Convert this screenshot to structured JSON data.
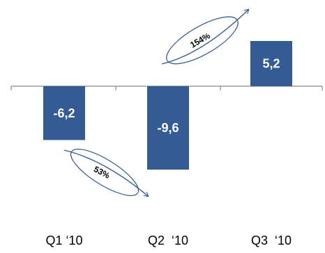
{
  "chart_data": {
    "type": "bar",
    "categories": [
      "Q1 ‘10",
      "Q2  ‘10",
      "Q3  ‘10"
    ],
    "values": [
      -6.2,
      -9.6,
      5.2
    ],
    "data_labels": [
      "-6,2",
      "-9,6",
      "5,2"
    ],
    "ylim": [
      -13,
      8.5
    ],
    "grid": false,
    "legend": "none",
    "annotations": [
      {
        "text": "53%",
        "from_category": 0,
        "to_category": 1,
        "direction": "down"
      },
      {
        "text": "154%",
        "from_category": 1,
        "to_category": 2,
        "direction": "up"
      }
    ]
  },
  "colors": {
    "bar": "#345b94",
    "axis": "#888888",
    "annotation_stroke": "#345b94"
  }
}
